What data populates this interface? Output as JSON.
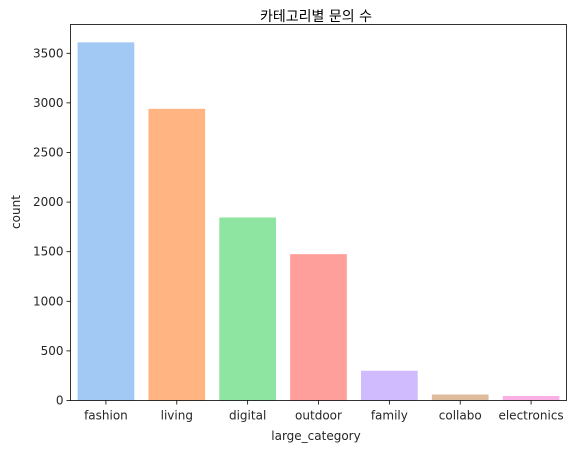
{
  "chart_data": {
    "type": "bar",
    "title": "카테고리별 문의 수",
    "xlabel": "large_category",
    "ylabel": "count",
    "categories": [
      "fashion",
      "living",
      "digital",
      "outdoor",
      "family",
      "collabo",
      "electronics"
    ],
    "values": [
      3610,
      2940,
      1845,
      1475,
      300,
      60,
      45
    ],
    "colors": [
      "#a1c9f4",
      "#ffb482",
      "#8de5a1",
      "#ff9f9b",
      "#d0bbff",
      "#debb9b",
      "#fab0e4"
    ],
    "ylim": [
      0,
      3790
    ],
    "yticks": [
      0,
      500,
      1000,
      1500,
      2000,
      2500,
      3000,
      3500
    ],
    "grid": false,
    "legend": "none"
  }
}
